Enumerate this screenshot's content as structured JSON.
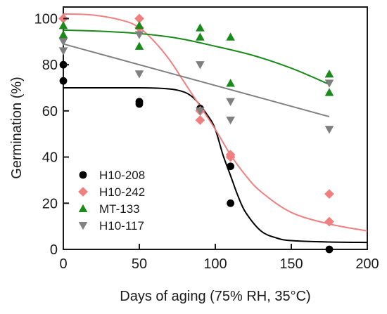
{
  "chart_data": {
    "type": "scatter",
    "xlabel": "Days of aging (75% RH, 35°C)",
    "ylabel": "Germination (%)",
    "xlim": [
      0,
      200
    ],
    "ylim": [
      0,
      105
    ],
    "xticks": [
      "0",
      "50",
      "100",
      "150",
      "200"
    ],
    "yticks": [
      "0",
      "20",
      "40",
      "60",
      "80",
      "100"
    ],
    "grid": false,
    "legend_position": "bottom-left",
    "series": [
      {
        "name": "H10-208",
        "marker": "circle",
        "color": "#000000",
        "points": [
          [
            0,
            80
          ],
          [
            0,
            73
          ],
          [
            50,
            64
          ],
          [
            50,
            63
          ],
          [
            90,
            61
          ],
          [
            110,
            36
          ],
          [
            110,
            20
          ],
          [
            175,
            0
          ]
        ],
        "fit": [
          [
            0,
            70
          ],
          [
            40,
            70
          ],
          [
            60,
            69.9
          ],
          [
            75,
            69
          ],
          [
            85,
            66
          ],
          [
            95,
            58
          ],
          [
            100,
            52
          ],
          [
            105,
            41
          ],
          [
            110,
            32
          ],
          [
            115,
            23
          ],
          [
            120,
            16
          ],
          [
            130,
            8
          ],
          [
            140,
            5
          ],
          [
            150,
            3.8
          ],
          [
            175,
            3.2
          ],
          [
            200,
            3
          ]
        ]
      },
      {
        "name": "H10-242",
        "marker": "diamond",
        "color": "#f08080",
        "points": [
          [
            0,
            100
          ],
          [
            50,
            100
          ],
          [
            50,
            96
          ],
          [
            90,
            60
          ],
          [
            90,
            56
          ],
          [
            110,
            41
          ],
          [
            110,
            40
          ],
          [
            175,
            24
          ],
          [
            175,
            12
          ]
        ],
        "fit": [
          [
            0,
            102
          ],
          [
            20,
            101.5
          ],
          [
            40,
            99
          ],
          [
            50,
            96
          ],
          [
            60,
            90
          ],
          [
            70,
            82
          ],
          [
            80,
            72
          ],
          [
            90,
            62
          ],
          [
            100,
            52
          ],
          [
            110,
            41
          ],
          [
            120,
            32
          ],
          [
            130,
            25
          ],
          [
            150,
            16
          ],
          [
            175,
            11
          ],
          [
            200,
            8
          ]
        ]
      },
      {
        "name": "MT-133",
        "marker": "triangle-up",
        "color": "#1a8a1a",
        "points": [
          [
            0,
            97
          ],
          [
            0,
            93
          ],
          [
            50,
            97
          ],
          [
            50,
            88
          ],
          [
            90,
            96
          ],
          [
            90,
            92
          ],
          [
            110,
            92
          ],
          [
            110,
            72
          ],
          [
            175,
            76
          ],
          [
            175,
            68
          ]
        ],
        "fit": [
          [
            0,
            95
          ],
          [
            25,
            94.5
          ],
          [
            50,
            93.5
          ],
          [
            75,
            91.5
          ],
          [
            100,
            88
          ],
          [
            125,
            84
          ],
          [
            150,
            78.5
          ],
          [
            175,
            71.5
          ]
        ]
      },
      {
        "name": "H10-117",
        "marker": "triangle-down",
        "color": "#808080",
        "points": [
          [
            0,
            90
          ],
          [
            0,
            86
          ],
          [
            50,
            93
          ],
          [
            50,
            76
          ],
          [
            90,
            80
          ],
          [
            90,
            60
          ],
          [
            110,
            64
          ],
          [
            110,
            56
          ],
          [
            175,
            72
          ],
          [
            175,
            52
          ]
        ],
        "fit": [
          [
            0,
            89
          ],
          [
            175,
            57.5
          ]
        ]
      }
    ]
  }
}
